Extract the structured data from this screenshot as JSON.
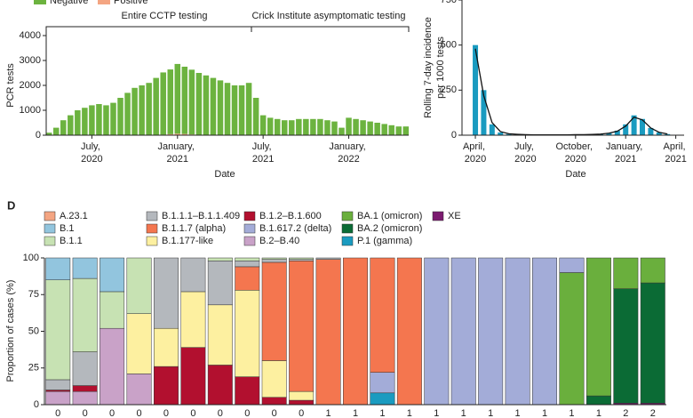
{
  "chart_data": [
    {
      "type": "bar",
      "ylabel": "PCR tests",
      "xlabel": "Date",
      "annotations": [
        "Entire CCTP testing",
        "Crick Institute asymptomatic testing"
      ],
      "x": [
        0,
        0.5,
        1,
        1.5,
        2,
        2.5,
        3,
        3.5,
        4,
        4.5,
        5,
        5.5,
        6,
        6.5,
        7,
        7.5,
        8,
        8.5,
        9,
        9.5,
        10,
        10.5,
        11,
        11.5,
        12,
        12.5,
        13,
        13.5,
        14,
        14.5,
        15,
        15.5,
        16,
        16.5,
        17,
        17.5,
        18,
        18.5,
        19,
        19.5,
        20,
        20.5,
        21,
        21.5,
        22,
        22.5,
        23,
        23.5,
        24,
        24.5,
        25
      ],
      "series": [
        {
          "name": "Negative",
          "color": "#6cb33f",
          "values": [
            100,
            300,
            600,
            800,
            1000,
            1100,
            1200,
            1250,
            1200,
            1300,
            1500,
            1700,
            1900,
            2000,
            2100,
            2300,
            2500,
            2600,
            2800,
            2700,
            2600,
            2500,
            2400,
            2300,
            2200,
            2100,
            2000,
            2000,
            2100,
            1500,
            800,
            700,
            650,
            600,
            600,
            650,
            650,
            650,
            650,
            600,
            550,
            300,
            700,
            650,
            600,
            550,
            500,
            450,
            400,
            350,
            350
          ]
        },
        {
          "name": "Positive",
          "color": "#f4a582",
          "values": [
            0,
            0,
            0,
            0,
            0,
            0,
            0,
            0,
            0,
            0,
            0,
            0,
            0,
            0,
            0,
            0,
            20,
            40,
            60,
            50,
            30,
            0,
            0,
            0,
            0,
            0,
            0,
            0,
            0,
            0,
            0,
            0,
            0,
            0,
            0,
            0,
            0,
            0,
            0,
            0,
            0,
            0,
            0,
            0,
            0,
            0,
            0,
            0,
            0,
            0,
            0
          ]
        }
      ],
      "xlim": [
        -0.2,
        25.2
      ],
      "ylim": [
        0,
        4000
      ],
      "yticks": [
        0,
        1000,
        2000,
        3000,
        4000
      ],
      "xticks": [
        {
          "value": 3,
          "label": "July, 2020"
        },
        {
          "value": 9,
          "label": "January, 2021"
        },
        {
          "value": 15,
          "label": "July, 2021"
        },
        {
          "value": 21,
          "label": "January, 2022"
        }
      ]
    },
    {
      "type": "bar",
      "ylabel": [
        "Rolling 7-day incidence",
        "per 1000 tests"
      ],
      "xlabel": "Date",
      "x": [
        0,
        0.5,
        1,
        1.5,
        2,
        2.5,
        3,
        3.5,
        4,
        4.5,
        5,
        5.5,
        6,
        6.5,
        7,
        7.5,
        8,
        8.5,
        9,
        9.5,
        10,
        10.5,
        11,
        11.5
      ],
      "series": [
        {
          "type": "bar",
          "color": "#1a9bc0",
          "values": [
            500,
            250,
            60,
            15,
            6,
            4,
            3,
            2,
            2,
            2,
            2,
            2,
            3,
            3,
            4,
            6,
            12,
            25,
            60,
            110,
            90,
            40,
            15,
            6
          ]
        },
        {
          "type": "line",
          "color": "#111111",
          "values": [
            480,
            220,
            70,
            20,
            8,
            5,
            3,
            2,
            2,
            2,
            2,
            2,
            3,
            3,
            4,
            6,
            11,
            22,
            50,
            100,
            85,
            40,
            16,
            7
          ]
        }
      ],
      "xlim": [
        -0.8,
        12.5
      ],
      "ylim": [
        0,
        750
      ],
      "yticks": [
        0,
        250,
        500,
        750
      ],
      "xticks": [
        {
          "value": 0,
          "label": "April, 2020"
        },
        {
          "value": 3,
          "label": "July, 2020"
        },
        {
          "value": 6,
          "label": "October, 2020"
        },
        {
          "value": 9,
          "label": "January, 2021"
        },
        {
          "value": 12,
          "label": "April, 2021"
        }
      ]
    },
    {
      "type": "stacked_bar",
      "panel": "D",
      "ylabel": "Proportion of cases (%)",
      "categories": [
        "0",
        "0",
        "0",
        "0",
        "0",
        "0",
        "0",
        "0",
        "0",
        "0",
        "1",
        "1",
        "1",
        "1",
        "1",
        "1",
        "1",
        "1",
        "1",
        "1",
        "1",
        "2",
        "2"
      ],
      "ylim": [
        0,
        100
      ],
      "yticks": [
        0,
        25,
        50,
        75,
        100
      ],
      "series": [
        {
          "name": "A.23.1",
          "color": "#f4a582",
          "values": [
            0,
            0,
            0,
            0,
            0,
            0,
            0,
            0,
            0,
            0,
            0,
            0,
            0,
            0,
            0,
            0,
            0,
            0,
            0,
            0,
            0,
            0,
            0
          ]
        },
        {
          "name": "B.1",
          "color": "#92c5de",
          "values": [
            15,
            14,
            23,
            0,
            0,
            0,
            0,
            0,
            0,
            0,
            0,
            0,
            0,
            0,
            0,
            0,
            0,
            0,
            0,
            0,
            0,
            0,
            0
          ]
        },
        {
          "name": "B.1.1",
          "color": "#c7e2b3",
          "values": [
            68,
            50,
            25,
            38,
            0,
            0,
            2,
            2,
            1,
            1,
            0,
            0,
            0,
            0,
            0,
            0,
            0,
            0,
            0,
            0,
            0,
            0,
            0
          ]
        },
        {
          "name": "B.1.1.1–B.1.1.409",
          "color": "#b4b8bd",
          "values": [
            7,
            23,
            0,
            0,
            48,
            23,
            30,
            4,
            2,
            1,
            1,
            0,
            0,
            0,
            0,
            0,
            0,
            0,
            0,
            0,
            0,
            0,
            0
          ]
        },
        {
          "name": "B.1.1.7 (alpha)",
          "color": "#f4764f",
          "values": [
            0,
            0,
            0,
            0,
            0,
            0,
            0,
            16,
            67,
            89,
            99,
            100,
            78,
            100,
            0,
            0,
            0,
            0,
            0,
            0,
            0,
            0,
            0
          ]
        },
        {
          "name": "B.1.177-like",
          "color": "#fdf0a0",
          "values": [
            0,
            0,
            0,
            41,
            26,
            38,
            41,
            59,
            25,
            6,
            0,
            0,
            0,
            0,
            0,
            0,
            0,
            0,
            0,
            0,
            0,
            0,
            0
          ]
        },
        {
          "name": "B.1.2–B.1.600",
          "color": "#b2102f",
          "values": [
            1,
            4,
            0,
            0,
            26,
            39,
            27,
            19,
            5,
            3,
            0,
            0,
            0,
            0,
            0,
            0,
            0,
            0,
            0,
            0,
            0,
            0,
            0
          ]
        },
        {
          "name": "B.1.617.2 (delta)",
          "color": "#a3acd8",
          "values": [
            0,
            0,
            0,
            0,
            0,
            0,
            0,
            0,
            0,
            0,
            0,
            0,
            14,
            0,
            100,
            100,
            100,
            100,
            100,
            10,
            0,
            0,
            0
          ]
        },
        {
          "name": "B.2–B.40",
          "color": "#c9a2c8",
          "values": [
            9,
            9,
            52,
            21,
            0,
            0,
            0,
            0,
            0,
            0,
            0,
            0,
            0,
            0,
            0,
            0,
            0,
            0,
            0,
            0,
            0,
            0,
            0
          ]
        },
        {
          "name": "BA.1 (omicron)",
          "color": "#6aaf3d",
          "values": [
            0,
            0,
            0,
            0,
            0,
            0,
            0,
            0,
            0,
            0,
            0,
            0,
            0,
            0,
            0,
            0,
            0,
            0,
            0,
            90,
            94,
            21,
            17
          ]
        },
        {
          "name": "BA.2 (omicron)",
          "color": "#0b6b35",
          "values": [
            0,
            0,
            0,
            0,
            0,
            0,
            0,
            0,
            0,
            0,
            0,
            0,
            0,
            0,
            0,
            0,
            0,
            0,
            0,
            0,
            6,
            78,
            82
          ]
        },
        {
          "name": "P.1 (gamma)",
          "color": "#1a9bc0",
          "values": [
            0,
            0,
            0,
            0,
            0,
            0,
            0,
            0,
            0,
            0,
            0,
            0,
            8,
            0,
            0,
            0,
            0,
            0,
            0,
            0,
            0,
            0,
            0
          ]
        },
        {
          "name": "XE",
          "color": "#7b1a6f",
          "values": [
            0,
            0,
            0,
            0,
            0,
            0,
            0,
            0,
            0,
            0,
            0,
            0,
            0,
            0,
            0,
            0,
            0,
            0,
            0,
            0,
            0,
            1,
            1
          ]
        }
      ]
    }
  ]
}
